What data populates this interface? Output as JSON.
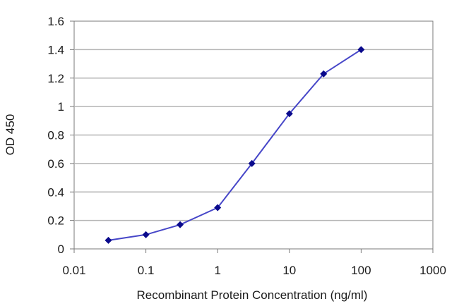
{
  "chart_data": {
    "type": "line",
    "title": "",
    "xlabel": "Recombinant Protein Concentration (ng/ml)",
    "ylabel": "OD 450",
    "x_scale": "log",
    "xlim": [
      0.01,
      1000
    ],
    "ylim": [
      0,
      1.6
    ],
    "x_ticks": [
      "0.01",
      "0.1",
      "1",
      "10",
      "100",
      "1000"
    ],
    "y_ticks": [
      "0",
      "0.2",
      "0.4",
      "0.6",
      "0.8",
      "1",
      "1.2",
      "1.4",
      "1.6"
    ],
    "grid": "horizontal",
    "legend": "none",
    "series": [
      {
        "x": [
          0.03,
          0.1,
          0.3,
          1,
          3,
          10,
          30,
          100
        ],
        "y": [
          0.06,
          0.1,
          0.17,
          0.29,
          0.6,
          0.95,
          1.23,
          1.4
        ]
      }
    ],
    "colors": {
      "line": "#4646c8",
      "marker": "#0a0a8c",
      "grid": "#b4b4b4",
      "frame": "#7a7a7a"
    }
  }
}
